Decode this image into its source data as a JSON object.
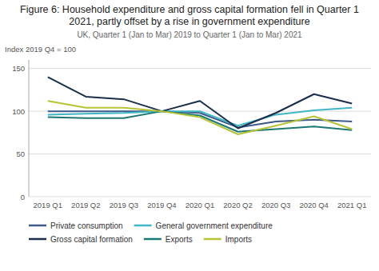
{
  "chart_data": {
    "type": "line",
    "title": "Figure 6: Household expenditure and gross capital formation fell in Quarter 1 2021, partly offset by a rise in government expenditure",
    "subtitle": "UK, Quarter 1 (Jan to Mar) 2019 to Quarter 1 (Jan to Mar) 2021",
    "y_label": "Index 2019 Q4 = 100",
    "categories": [
      "2019 Q1",
      "2019 Q2",
      "2019 Q3",
      "2019 Q4",
      "2020 Q1",
      "2020 Q2",
      "2020 Q3",
      "2020 Q4",
      "2021 Q1"
    ],
    "series": [
      {
        "name": "Private consumption",
        "color": "#3d5a8a",
        "values": [
          100,
          100,
          100,
          100,
          98,
          81,
          88,
          90,
          88
        ]
      },
      {
        "name": "General government expenditure",
        "color": "#41b6c4",
        "values": [
          96,
          97,
          98,
          100,
          100,
          83,
          96,
          101,
          104
        ]
      },
      {
        "name": "Gross capital formation",
        "color": "#1a2e4a",
        "values": [
          140,
          117,
          114,
          100,
          112,
          80,
          98,
          120,
          109
        ]
      },
      {
        "name": "Exports",
        "color": "#1d7874",
        "values": [
          93,
          92,
          92,
          100,
          95,
          76,
          79,
          82,
          78
        ]
      },
      {
        "name": "Imports",
        "color": "#b5c334",
        "values": [
          112,
          104,
          104,
          100,
          93,
          73,
          83,
          94,
          79
        ]
      }
    ],
    "ylim": [
      0,
      160
    ],
    "yticks": [
      0,
      50,
      100,
      150
    ],
    "grid": true,
    "legend": "bottom"
  }
}
